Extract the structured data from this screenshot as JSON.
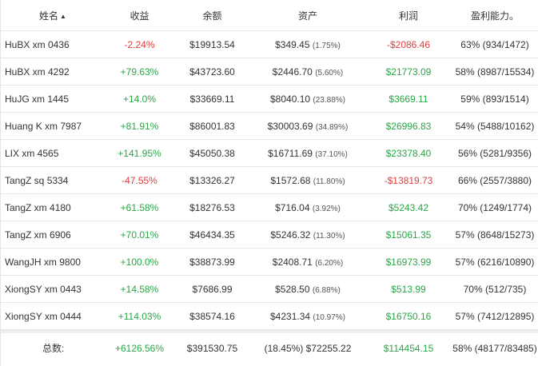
{
  "headers": {
    "name": "姓名",
    "sort_indicator": "▲",
    "return": "收益",
    "balance": "余额",
    "assets": "资产",
    "profit": "利润",
    "profitability": "盈利能力。"
  },
  "rows": [
    {
      "name": "HuBX xm 0436",
      "return": "-2.24%",
      "return_sign": "neg",
      "balance": "$19913.54",
      "assets": "$349.45",
      "assets_pct": "(1.75%)",
      "profit": "-$2086.46",
      "profit_sign": "neg",
      "profitability": "63% (934/1472)"
    },
    {
      "name": "HuBX xm 4292",
      "return": "+79.63%",
      "return_sign": "pos",
      "balance": "$43723.60",
      "assets": "$2446.70",
      "assets_pct": "(5.60%)",
      "profit": "$21773.09",
      "profit_sign": "pos",
      "profitability": "58% (8987/15534)"
    },
    {
      "name": "HuJG xm 1445",
      "return": "+14.0%",
      "return_sign": "pos",
      "balance": "$33669.11",
      "assets": "$8040.10",
      "assets_pct": "(23.88%)",
      "profit": "$3669.11",
      "profit_sign": "pos",
      "profitability": "59% (893/1514)"
    },
    {
      "name": "Huang K xm 7987",
      "return": "+81.91%",
      "return_sign": "pos",
      "balance": "$86001.83",
      "assets": "$30003.69",
      "assets_pct": "(34.89%)",
      "profit": "$26996.83",
      "profit_sign": "pos",
      "profitability": "54% (5488/10162)"
    },
    {
      "name": "LIX xm 4565",
      "return": "+141.95%",
      "return_sign": "pos",
      "balance": "$45050.38",
      "assets": "$16711.69",
      "assets_pct": "(37.10%)",
      "profit": "$23378.40",
      "profit_sign": "pos",
      "profitability": "56% (5281/9356)"
    },
    {
      "name": "TangZ sq 5334",
      "return": "-47.55%",
      "return_sign": "neg",
      "balance": "$13326.27",
      "assets": "$1572.68",
      "assets_pct": "(11.80%)",
      "profit": "-$13819.73",
      "profit_sign": "neg",
      "profitability": "66% (2557/3880)"
    },
    {
      "name": "TangZ xm 4180",
      "return": "+61.58%",
      "return_sign": "pos",
      "balance": "$18276.53",
      "assets": "$716.04",
      "assets_pct": "(3.92%)",
      "profit": "$5243.42",
      "profit_sign": "pos",
      "profitability": "70% (1249/1774)"
    },
    {
      "name": "TangZ xm 6906",
      "return": "+70.01%",
      "return_sign": "pos",
      "balance": "$46434.35",
      "assets": "$5246.32",
      "assets_pct": "(11.30%)",
      "profit": "$15061.35",
      "profit_sign": "pos",
      "profitability": "57% (8648/15273)"
    },
    {
      "name": "WangJH xm 9800",
      "return": "+100.0%",
      "return_sign": "pos",
      "balance": "$38873.99",
      "assets": "$2408.71",
      "assets_pct": "(6.20%)",
      "profit": "$16973.99",
      "profit_sign": "pos",
      "profitability": "57% (6216/10890)"
    },
    {
      "name": "XiongSY xm 0443",
      "return": "+14.58%",
      "return_sign": "pos",
      "balance": "$7686.99",
      "assets": "$528.50",
      "assets_pct": "(6.88%)",
      "profit": "$513.99",
      "profit_sign": "pos",
      "profitability": "70% (512/735)"
    },
    {
      "name": "XiongSY xm 0444",
      "return": "+114.03%",
      "return_sign": "pos",
      "balance": "$38574.16",
      "assets": "$4231.34",
      "assets_pct": "(10.97%)",
      "profit": "$16750.16",
      "profit_sign": "pos",
      "profitability": "57% (7412/12895)"
    }
  ],
  "totals": {
    "label": "总数:",
    "return": "+6126.56%",
    "balance": "$391530.75",
    "assets": "(18.45%) $72255.22",
    "profit": "$114454.15",
    "profitability": "58% (48177/83485)"
  },
  "colors": {
    "positive": "#28a745",
    "negative": "#e03e3e"
  }
}
